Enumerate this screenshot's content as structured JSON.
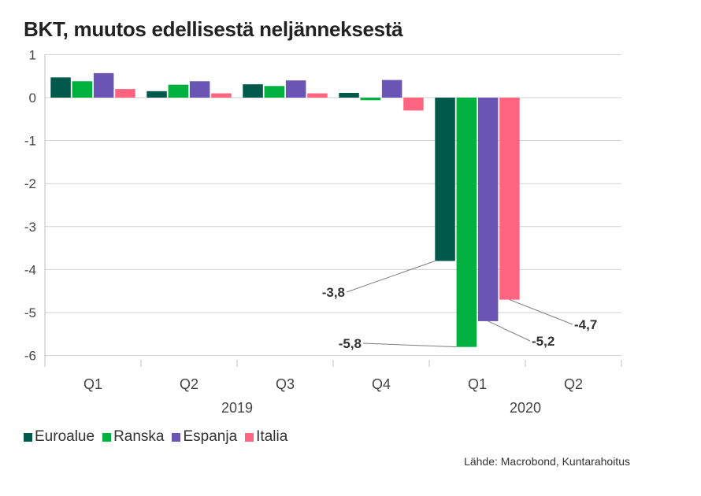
{
  "title": "BKT, muutos edellisestä neljänneksestä",
  "source": "Lähde: Macrobond, Kuntarahoitus",
  "chart_data": {
    "type": "bar",
    "title": "BKT, muutos edellisestä neljänneksestä",
    "categories": [
      "Q1",
      "Q2",
      "Q3",
      "Q4",
      "Q1",
      "Q2"
    ],
    "groups": [
      {
        "label": "2019",
        "categories": [
          "Q1",
          "Q2",
          "Q3",
          "Q4"
        ]
      },
      {
        "label": "2020",
        "categories": [
          "Q1",
          "Q2"
        ]
      }
    ],
    "series": [
      {
        "name": "Euroalue",
        "color": "#005a4b",
        "values": [
          0.47,
          0.15,
          0.31,
          0.11,
          -3.8,
          null
        ]
      },
      {
        "name": "Ranska",
        "color": "#00b140",
        "values": [
          0.38,
          0.3,
          0.27,
          -0.06,
          -5.8,
          null
        ]
      },
      {
        "name": "Espanja",
        "color": "#6a55b4",
        "values": [
          0.57,
          0.38,
          0.4,
          0.41,
          -5.2,
          null
        ]
      },
      {
        "name": "Italia",
        "color": "#ff6480",
        "values": [
          0.2,
          0.1,
          0.1,
          -0.3,
          -4.7,
          null
        ]
      }
    ],
    "data_labels": [
      {
        "series": "Euroalue",
        "category_index": 4,
        "text": "-3,8"
      },
      {
        "series": "Ranska",
        "category_index": 4,
        "text": "-5,8"
      },
      {
        "series": "Espanja",
        "category_index": 4,
        "text": "-5,2"
      },
      {
        "series": "Italia",
        "category_index": 4,
        "text": "-4,7"
      }
    ],
    "y_ticks": [
      "1",
      "0",
      "-1",
      "-2",
      "-3",
      "-4",
      "-5",
      "-6"
    ],
    "ylim": [
      -6.3,
      1.0
    ],
    "grid": true,
    "legend": "bottom-left"
  }
}
